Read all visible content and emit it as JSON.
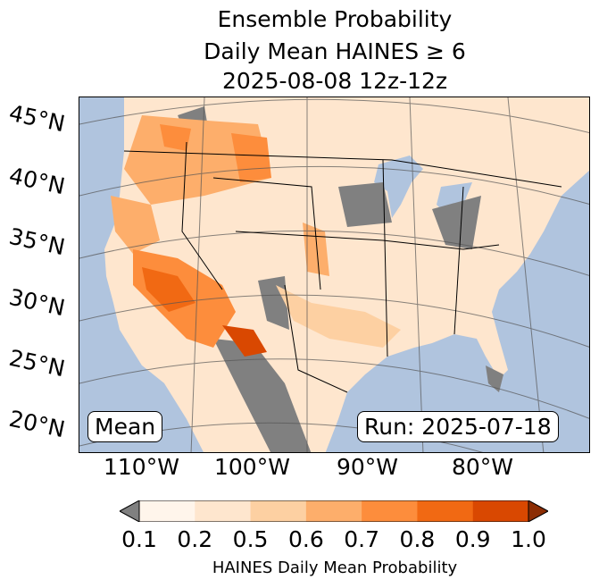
{
  "title": {
    "line1": "Ensemble Probability",
    "line2": "Daily Mean HAINES ≥ 6",
    "line3": "2025-08-08 12z-12z"
  },
  "map": {
    "lat_labels": [
      "45°N",
      "40°N",
      "35°N",
      "30°N",
      "25°N",
      "20°N"
    ],
    "lon_labels": [
      "110°W",
      "100°W",
      "90°W",
      "80°W"
    ],
    "mean_label": "Mean",
    "run_label": "Run: 2025-07-18",
    "colors": {
      "ocean": "#b0c4de",
      "missing": "#808080"
    }
  },
  "colorbar": {
    "label": "HAINES Daily Mean Probability",
    "ticks": [
      "0.1",
      "0.2",
      "0.5",
      "0.6",
      "0.7",
      "0.8",
      "0.9",
      "1.0"
    ],
    "colors": [
      "#fff5eb",
      "#fee6ce",
      "#fdd0a2",
      "#fdae6b",
      "#fd8d3c",
      "#f16913",
      "#d94801"
    ],
    "under_color": "#808080",
    "over_color": "#8c2d04"
  }
}
